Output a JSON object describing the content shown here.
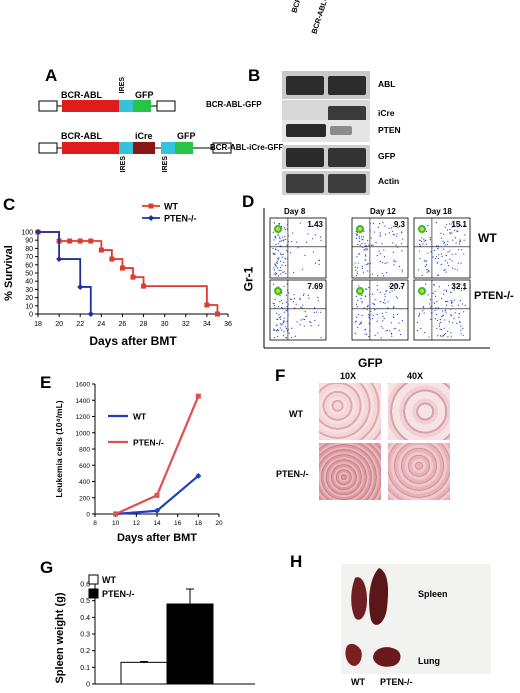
{
  "panels": {
    "A": "A",
    "B": "B",
    "C": "C",
    "D": "D",
    "E": "E",
    "F": "F",
    "G": "G",
    "H": "H"
  },
  "panel_a": {
    "construct1": {
      "name": "BCR-ABL-GFP",
      "seg_bcr": "BCR-ABL",
      "seg_ires": "IRES",
      "seg_gfp": "GFP"
    },
    "construct2": {
      "name": "BCR-ABL-iCre-GFP",
      "seg_bcr": "BCR-ABL",
      "seg_icre": "iCre",
      "seg_gfp": "GFP",
      "ires1": "IRES",
      "ires2": "IRES"
    },
    "colors": {
      "bcr": "#e01b1b",
      "ires": "#35c2dc",
      "gfp": "#27c447",
      "icre": "#8b1616"
    }
  },
  "panel_b": {
    "columns": [
      "BCR-ABL-GFP",
      "BCR-ABL-iCre-GFP"
    ],
    "rows": [
      "ABL",
      "iCre",
      "PTEN",
      "GFP",
      "Actin"
    ]
  },
  "chart_data": [
    {
      "panel": "C",
      "type": "line",
      "xlabel": "Days after BMT",
      "ylabel": "% Survival",
      "xlim": [
        18,
        36
      ],
      "ylim": [
        0,
        100
      ],
      "xticks": [
        18,
        20,
        22,
        24,
        26,
        28,
        30,
        32,
        34,
        36
      ],
      "yticks": [
        0,
        10,
        20,
        30,
        40,
        50,
        60,
        70,
        80,
        90,
        100
      ],
      "series": [
        {
          "name": "WT",
          "color": "#e03a2f",
          "x": [
            18,
            20,
            21,
            22,
            23,
            24,
            25,
            26,
            27,
            28,
            34,
            35
          ],
          "y": [
            100,
            89,
            89,
            89,
            89,
            78,
            67,
            56,
            45,
            34,
            11,
            0
          ]
        },
        {
          "name": "PTEN-/-",
          "color": "#1f2f9c",
          "x": [
            18,
            20,
            22,
            23
          ],
          "y": [
            100,
            67,
            33,
            0
          ]
        }
      ]
    },
    {
      "panel": "E",
      "type": "line",
      "xlabel": "Days after BMT",
      "ylabel": "Leukemia cells (10⁴/mL)",
      "xlim": [
        8,
        20
      ],
      "ylim": [
        0,
        1600
      ],
      "xticks": [
        8,
        10,
        12,
        14,
        16,
        18,
        20
      ],
      "yticks": [
        0,
        200,
        400,
        600,
        800,
        1000,
        1200,
        1400,
        1600
      ],
      "series": [
        {
          "name": "WT",
          "color": "#1f3fc4",
          "x": [
            10,
            14,
            18
          ],
          "y": [
            0,
            40,
            470
          ]
        },
        {
          "name": "PTEN-/-",
          "color": "#e05050",
          "x": [
            10,
            14,
            18
          ],
          "y": [
            0,
            230,
            1450
          ]
        }
      ]
    },
    {
      "panel": "G",
      "type": "bar",
      "ylabel": "Spleen weight (g)",
      "ylim": [
        0,
        0.6
      ],
      "yticks": [
        0,
        0.1,
        0.2,
        0.3,
        0.4,
        0.5,
        0.6
      ],
      "series": [
        {
          "name": "WT",
          "value": 0.13,
          "error": 0.005,
          "fill": "#ffffff"
        },
        {
          "name": "PTEN-/-",
          "value": 0.48,
          "error": 0.09,
          "fill": "#000000"
        }
      ]
    }
  ],
  "panel_d": {
    "columns": [
      "Day 8",
      "Day 12",
      "Day 18"
    ],
    "row_labels": [
      "WT",
      "PTEN-/-"
    ],
    "xlabel": "GFP",
    "ylabel": "Gr-1",
    "wt_values": [
      "1.43",
      "9.3",
      "15.1"
    ],
    "pten_values": [
      "7.69",
      "20.7",
      "32.1"
    ]
  },
  "panel_f": {
    "columns": [
      "10X",
      "40X"
    ],
    "rows": [
      "WT",
      "PTEN-/-"
    ]
  },
  "panel_h": {
    "top_label": "Spleen",
    "bottom_label": "Lung",
    "col_wt": "WT",
    "col_pten": "PTEN-/-"
  }
}
